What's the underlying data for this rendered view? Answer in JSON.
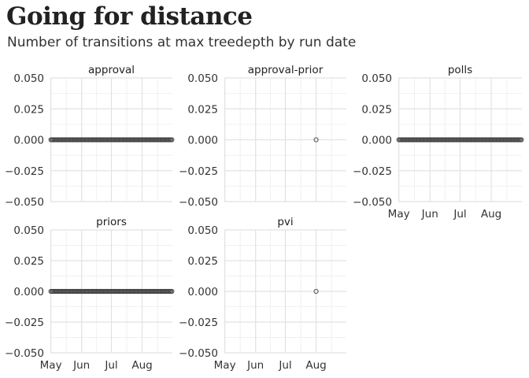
{
  "title": "Going for distance",
  "subtitle": "Number of transitions at max treedepth by run date",
  "chart_data": {
    "type": "scatter",
    "facet_layout": "3 columns, 2 rows",
    "ylim": [
      -0.05,
      0.05
    ],
    "y_ticks": [
      "0.050",
      "0.025",
      "0.000",
      "-0.025",
      "-0.050"
    ],
    "x_ticks": [
      "May",
      "Jun",
      "Jul",
      "Aug"
    ],
    "grid": true,
    "point_style": "hollow circle, dark grey",
    "panels": [
      {
        "name": "approval",
        "points": {
          "date_start": "May 1",
          "date_end": "Aug 31",
          "frequency": "daily",
          "y": 0
        }
      },
      {
        "name": "approval-prior",
        "points": {
          "date": "Aug 1",
          "y": 0
        }
      },
      {
        "name": "polls",
        "points": {
          "date_start": "May 1",
          "date_end": "Aug 31",
          "frequency": "daily",
          "y": 0
        }
      },
      {
        "name": "priors",
        "points": {
          "date_start": "May 1",
          "date_end": "Aug 31",
          "frequency": "daily",
          "y": 0
        }
      },
      {
        "name": "pvi",
        "points": {
          "date": "Aug 1",
          "y": 0
        }
      }
    ]
  }
}
